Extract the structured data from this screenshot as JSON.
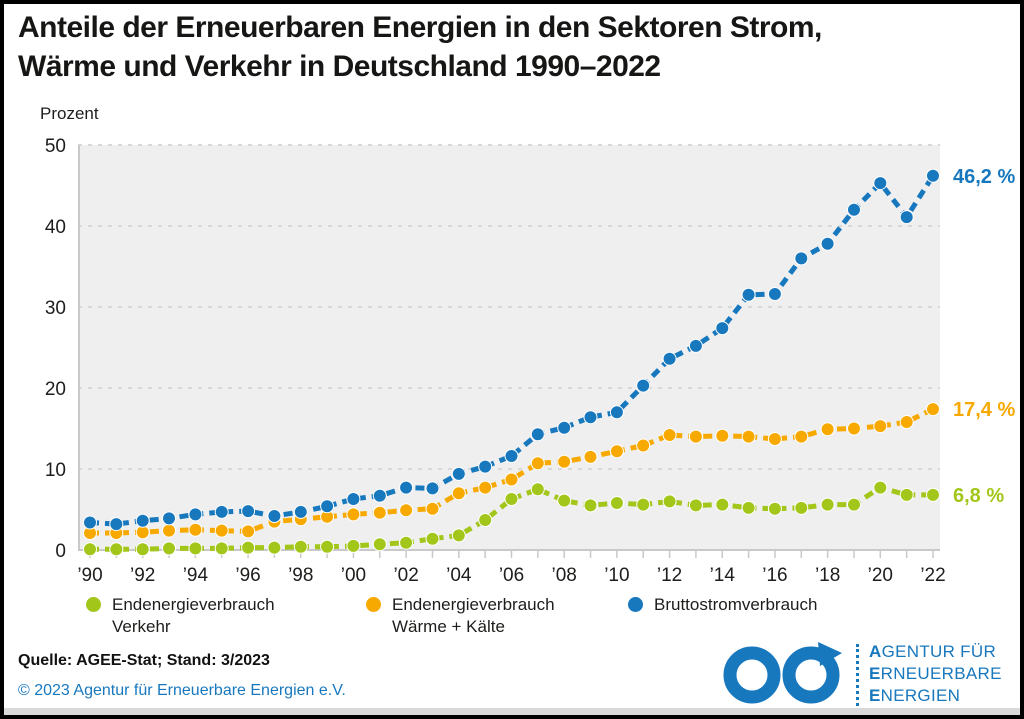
{
  "page": {
    "title_line1": "Anteile der Erneuerbaren Energien in den Sektoren Strom,",
    "title_line2": "Wärme und Verkehr in Deutschland 1990–2022"
  },
  "chart_data": {
    "type": "line",
    "title": "Anteile der Erneuerbaren Energien in den Sektoren Strom, Wärme und Verkehr in Deutschland 1990–2022",
    "ylabel": "Prozent",
    "ylim": [
      0,
      50
    ],
    "yticks": [
      0,
      10,
      20,
      30,
      40,
      50
    ],
    "grid": "horizontal-dashed",
    "legend_position": "bottom",
    "x": [
      1990,
      1991,
      1992,
      1993,
      1994,
      1995,
      1996,
      1997,
      1998,
      1999,
      2000,
      2001,
      2002,
      2003,
      2004,
      2005,
      2006,
      2007,
      2008,
      2009,
      2010,
      2011,
      2012,
      2013,
      2014,
      2015,
      2016,
      2017,
      2018,
      2019,
      2020,
      2021,
      2022
    ],
    "xtick_labels": [
      "’90",
      "’92",
      "’94",
      "’96",
      "’98",
      "’00",
      "’02",
      "’04",
      "’06",
      "’08",
      "’10",
      "’12",
      "’14",
      "’16",
      "’18",
      "’20",
      "’22"
    ],
    "series": [
      {
        "name": "Endenergieverbrauch Verkehr",
        "color": "#a3c61a",
        "end_label": "6,8 %",
        "values": [
          0.1,
          0.1,
          0.1,
          0.2,
          0.2,
          0.2,
          0.3,
          0.3,
          0.4,
          0.4,
          0.5,
          0.7,
          0.9,
          1.4,
          1.8,
          3.7,
          6.3,
          7.5,
          6.1,
          5.5,
          5.8,
          5.6,
          6.0,
          5.5,
          5.6,
          5.2,
          5.1,
          5.2,
          5.6,
          5.6,
          7.7,
          6.8,
          6.8
        ]
      },
      {
        "name": "Endenergieverbrauch Wärme + Kälte",
        "color": "#f8a900",
        "end_label": "17,4 %",
        "values": [
          2.1,
          2.1,
          2.2,
          2.4,
          2.5,
          2.4,
          2.3,
          3.5,
          3.8,
          4.1,
          4.4,
          4.6,
          4.9,
          5.1,
          7.0,
          7.7,
          8.7,
          10.7,
          10.9,
          11.5,
          12.2,
          12.9,
          14.2,
          14.0,
          14.1,
          14.0,
          13.7,
          14.0,
          14.9,
          15.0,
          15.3,
          15.8,
          17.4
        ]
      },
      {
        "name": "Bruttostromverbrauch",
        "color": "#1878be",
        "end_label": "46,2 %",
        "values": [
          3.4,
          3.2,
          3.6,
          3.9,
          4.4,
          4.7,
          4.8,
          4.2,
          4.7,
          5.4,
          6.3,
          6.7,
          7.7,
          7.6,
          9.4,
          10.3,
          11.6,
          14.3,
          15.1,
          16.4,
          17.0,
          20.3,
          23.6,
          25.2,
          27.4,
          31.5,
          31.6,
          36.0,
          37.8,
          42.0,
          45.3,
          41.1,
          46.2
        ]
      }
    ]
  },
  "legend": {
    "items": [
      {
        "line1": "Endenergieverbrauch",
        "line2": "Verkehr",
        "color": "#a3c61a"
      },
      {
        "line1": "Endenergieverbrauch",
        "line2": "Wärme + Kälte",
        "color": "#f8a900"
      },
      {
        "line1": "Bruttostromverbrauch",
        "line2": "",
        "color": "#1878be"
      }
    ]
  },
  "footer": {
    "source": "Quelle: AGEE-Stat; Stand: 3/2023",
    "copyright": "© 2023 Agentur für Erneuerbare Energien e.V."
  },
  "logo": {
    "color": "#1878be",
    "line1_lead": "A",
    "line1_rest": "GENTUR FÜR",
    "line2_lead": "E",
    "line2_rest": "RNEUERBARE",
    "line3_lead": "E",
    "line3_rest": "NERGIEN"
  }
}
